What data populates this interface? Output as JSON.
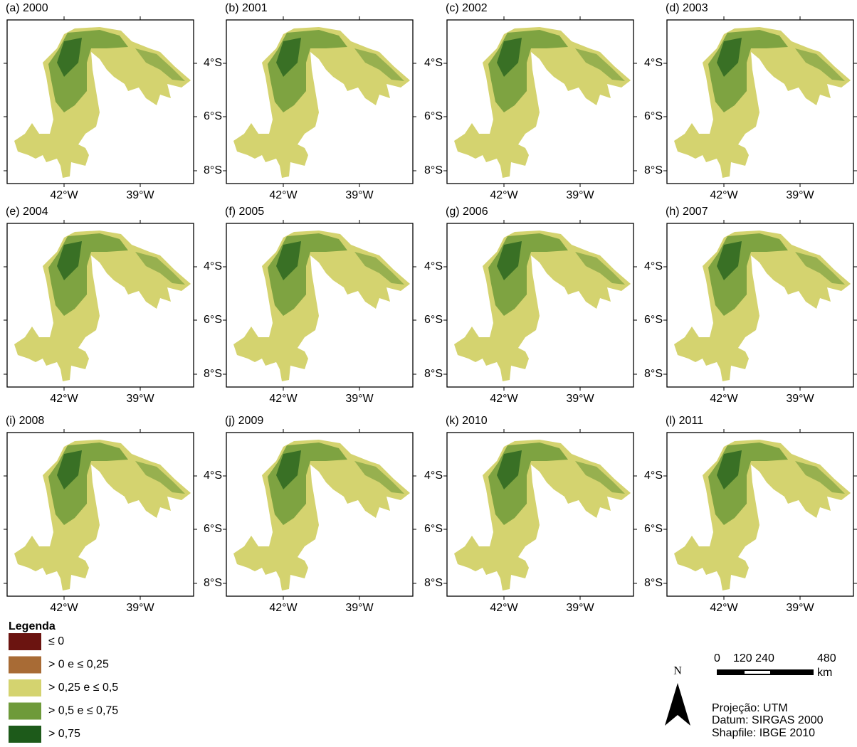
{
  "panels": [
    {
      "label": "(a) 2000"
    },
    {
      "label": "(b) 2001"
    },
    {
      "label": "(c) 2002"
    },
    {
      "label": "(d) 2003"
    },
    {
      "label": "(e) 2004"
    },
    {
      "label": "(f) 2005"
    },
    {
      "label": "(g) 2006"
    },
    {
      "label": "(h) 2007"
    },
    {
      "label": "(i) 2008"
    },
    {
      "label": "(j) 2009"
    },
    {
      "label": "(k) 2010"
    },
    {
      "label": "(l) 2011"
    }
  ],
  "lat_labels": [
    "4°S",
    "6°S",
    "8°S"
  ],
  "lon_labels": [
    "42°W",
    "39°W"
  ],
  "legend": {
    "title": "Legenda",
    "items": [
      {
        "label": "≤ 0",
        "color": "#6b1410"
      },
      {
        "label": "> 0 e ≤ 0,25",
        "color": "#a86b35"
      },
      {
        "label": "> 0,25 e ≤ 0,5",
        "color": "#d4d36f"
      },
      {
        "label": "> 0,5 e ≤ 0,75",
        "color": "#6e9a3a"
      },
      {
        "label": "> 0,75",
        "color": "#1d5a1a"
      }
    ]
  },
  "scale_bar": {
    "ticks": [
      "0",
      "120 240",
      "480"
    ],
    "unit": "km"
  },
  "north": "N",
  "notes": [
    "Projeção: UTM",
    "Datum: SIRGAS 2000",
    "Shapfile: IBGE 2010"
  ]
}
